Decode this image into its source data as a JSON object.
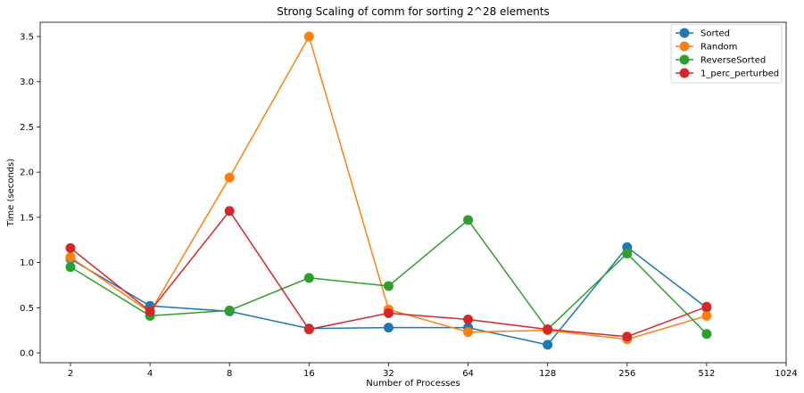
{
  "chart_data": {
    "type": "line",
    "title": "Strong Scaling of comm for sorting 2^28 elements",
    "xlabel": "Number of Processes",
    "ylabel": "Time (seconds)",
    "x_scale": "log2",
    "xlim": [
      2,
      1024
    ],
    "ylim": [
      0,
      3.65
    ],
    "x_ticks": [
      2,
      4,
      8,
      16,
      32,
      64,
      128,
      256,
      512,
      1024
    ],
    "y_ticks": [
      "0.0",
      "0.5",
      "1.0",
      "1.5",
      "2.0",
      "2.5",
      "3.0",
      "3.5"
    ],
    "x": [
      2,
      4,
      8,
      16,
      32,
      64,
      128,
      256,
      512
    ],
    "grid": false,
    "legend_position": "top-right",
    "series": [
      {
        "name": "Sorted",
        "color": "#1f77b4",
        "values": [
          1.04,
          0.52,
          0.46,
          0.27,
          0.28,
          0.28,
          0.09,
          1.17,
          0.5
        ]
      },
      {
        "name": "Random",
        "color": "#ff7f0e",
        "values": [
          1.06,
          0.45,
          1.94,
          3.5,
          0.48,
          0.23,
          0.25,
          0.15,
          0.41
        ]
      },
      {
        "name": "ReverseSorted",
        "color": "#2ca02c",
        "values": [
          0.95,
          0.41,
          0.47,
          0.83,
          0.74,
          1.47,
          0.26,
          1.1,
          0.21
        ]
      },
      {
        "name": "1_perc_perturbed",
        "color": "#d62728",
        "values": [
          1.16,
          0.46,
          1.57,
          0.26,
          0.44,
          0.37,
          0.26,
          0.18,
          0.51
        ]
      }
    ]
  }
}
